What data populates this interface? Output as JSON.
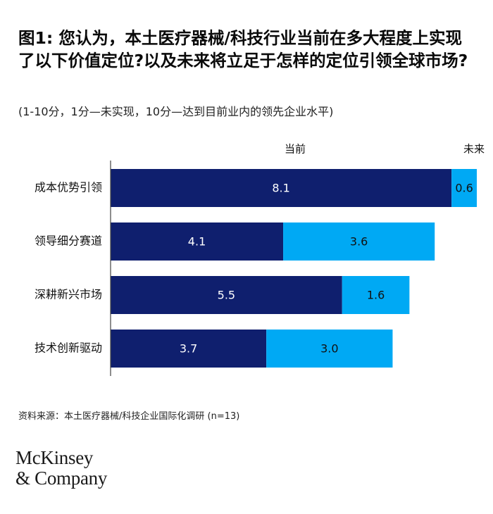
{
  "title": "图1: 您认为，本土医疗器械/科技行业当前在多大程度上实现了以下价值定位?以及未来将立足于怎样的定位引领全球市场?",
  "subtitle": "(1-10分，1分—未实现，10分—达到目前业内的领先企业水平)",
  "source": "资料来源：本土医疗器械/科技企业国际化调研 (n=13)",
  "logo": {
    "line1": "McKinsey",
    "line2": "& Company"
  },
  "colors": {
    "current": "#0f1f6e",
    "future": "#00a9f4",
    "axis": "#444444"
  },
  "chart_data": {
    "type": "bar",
    "orientation": "horizontal",
    "stacked": true,
    "categories": [
      "成本优势引领",
      "领导细分赛道",
      "深耕新兴市场",
      "技术创新驱动"
    ],
    "series": [
      {
        "name": "当前",
        "values": [
          8.1,
          4.1,
          5.5,
          3.7
        ],
        "color": "#0f1f6e"
      },
      {
        "name": "未来",
        "values": [
          0.6,
          3.6,
          1.6,
          3.0
        ],
        "color": "#00a9f4"
      }
    ],
    "xlim": [
      0,
      8.7
    ],
    "legend": "top",
    "grid": false
  }
}
